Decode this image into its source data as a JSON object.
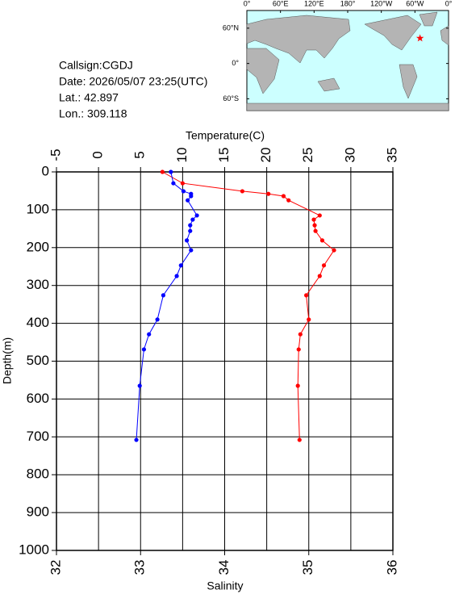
{
  "info": {
    "callsign": "Callsign:CGDJ",
    "date": "Date:  2026/05/07 23:25(UTC)",
    "lat": "Lat.:  42.897",
    "lon": "Lon.:  309.118"
  },
  "map": {
    "lonlim": [
      0,
      360
    ],
    "latlim": [
      -80,
      90
    ],
    "lonticks": [
      {
        "value": 0,
        "label": "0°"
      },
      {
        "value": 60,
        "label": "60°E"
      },
      {
        "value": 120,
        "label": "120°E"
      },
      {
        "value": 180,
        "label": "180°"
      },
      {
        "value": 240,
        "label": "120°W"
      },
      {
        "value": 300,
        "label": "60°W"
      },
      {
        "value": 360,
        "label": "0°"
      }
    ],
    "latticks": [
      {
        "value": 60,
        "label": "60°N"
      },
      {
        "value": 0,
        "label": "0°"
      },
      {
        "value": -60,
        "label": "60°S"
      }
    ],
    "station": {
      "lon": 309.118,
      "lat": 42.897,
      "color": "#ff0000"
    }
  },
  "chart_data": {
    "type": "profile",
    "xlabel": "Temperature(C)",
    "x2label": "Salinity",
    "ylabel": "Depth(m)",
    "xlim": [
      -5,
      35
    ],
    "xticks": [
      -5,
      0,
      5,
      10,
      15,
      20,
      25,
      30,
      35
    ],
    "x2lim": [
      32,
      36
    ],
    "x2ticks": [
      32,
      33,
      34,
      35,
      36
    ],
    "ylim": [
      0,
      1000
    ],
    "yticks": [
      0,
      100,
      200,
      300,
      400,
      500,
      600,
      700,
      800,
      900,
      1000
    ],
    "grid": true,
    "y": [
      0,
      30,
      51,
      58,
      64,
      75,
      115,
      126,
      141,
      156,
      181,
      207,
      247,
      275,
      326,
      390,
      429,
      469,
      565,
      708
    ],
    "series": [
      {
        "color": "#ff0000",
        "axis": "x",
        "values": [
          7.6,
          10.0,
          17.1,
          20.2,
          22.0,
          22.6,
          26.3,
          25.6,
          25.7,
          25.8,
          26.6,
          28.0,
          26.8,
          26.3,
          24.7,
          25.0,
          24.0,
          23.8,
          23.7,
          23.9
        ]
      },
      {
        "color": "#0000ff",
        "axis": "x2",
        "values": [
          33.36,
          33.39,
          33.51,
          33.6,
          33.6,
          33.56,
          33.67,
          33.62,
          33.59,
          33.59,
          33.55,
          33.6,
          33.48,
          33.43,
          33.27,
          33.2,
          33.1,
          33.04,
          32.99,
          32.95
        ]
      }
    ]
  }
}
